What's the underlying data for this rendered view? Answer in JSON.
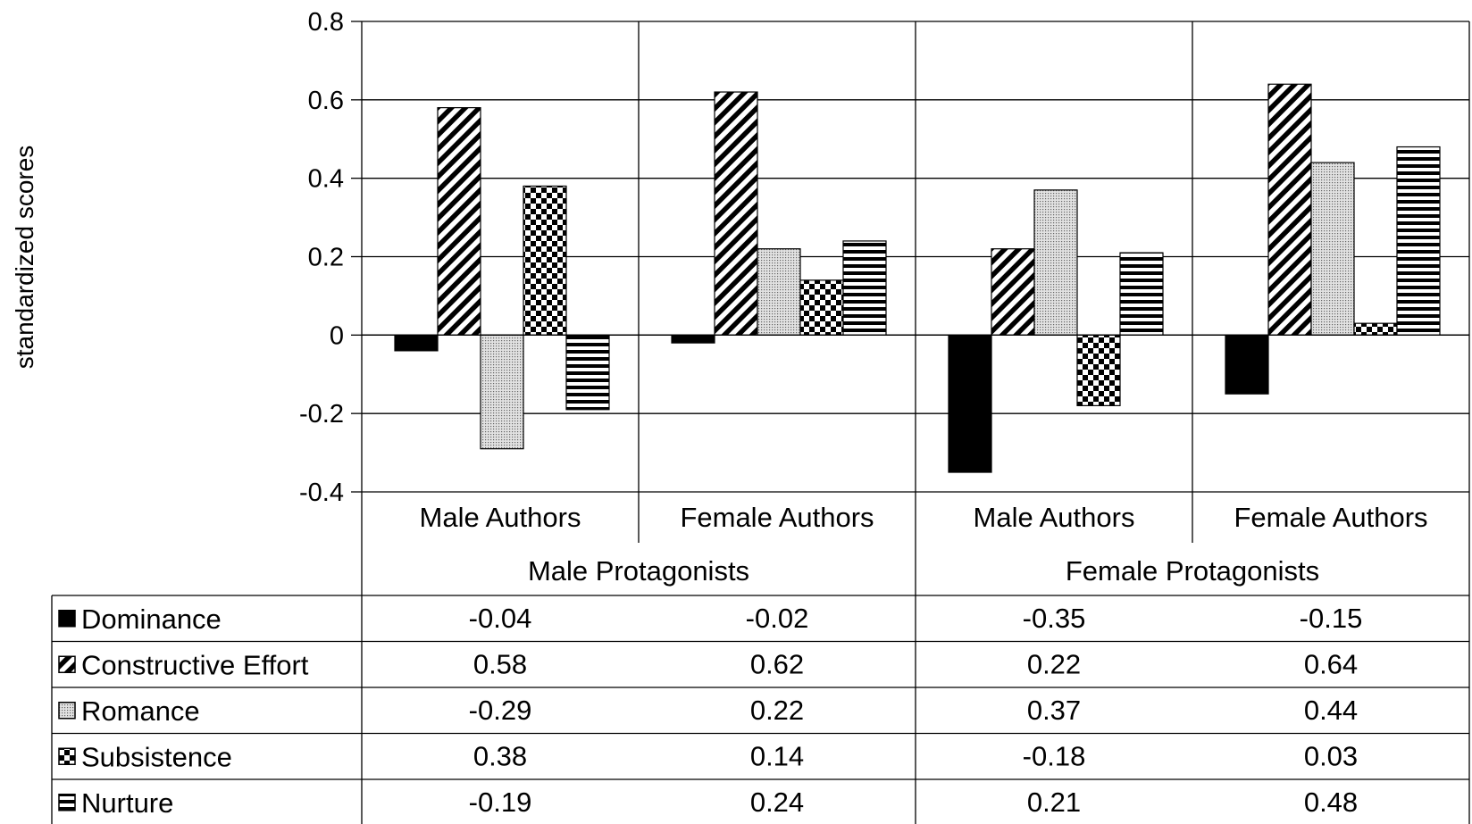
{
  "chart_data": {
    "type": "bar",
    "title": "",
    "ylabel": "standardized scores",
    "xlabel": "",
    "ylim": [
      -0.4,
      0.8
    ],
    "yticks": [
      0.8,
      0.6,
      0.4,
      0.2,
      0,
      -0.2,
      -0.4
    ],
    "ytick_labels": [
      "0.8",
      "0.6",
      "0.4",
      "0.2",
      "0",
      "-0.2",
      "-0.4"
    ],
    "categories": [
      "Male Authors",
      "Female Authors",
      "Male Authors",
      "Female Authors"
    ],
    "groups": [
      {
        "label": "Male Protagonists",
        "categories": [
          0,
          1
        ]
      },
      {
        "label": "Female Protagonists",
        "categories": [
          2,
          3
        ]
      }
    ],
    "series": [
      {
        "name": "Dominance",
        "pattern": "solid-black",
        "values": [
          -0.04,
          -0.02,
          -0.35,
          -0.15
        ],
        "labels": [
          "-0.04",
          "-0.02",
          "-0.35",
          "-0.15"
        ]
      },
      {
        "name": "Constructive Effort",
        "pattern": "diagonal-hatch",
        "values": [
          0.58,
          0.62,
          0.22,
          0.64
        ],
        "labels": [
          "0.58",
          "0.62",
          "0.22",
          "0.64"
        ]
      },
      {
        "name": "Romance",
        "pattern": "dotted",
        "values": [
          -0.29,
          0.22,
          0.37,
          0.44
        ],
        "labels": [
          "-0.29",
          "0.22",
          "0.37",
          "0.44"
        ]
      },
      {
        "name": "Subsistence",
        "pattern": "checkerboard",
        "values": [
          0.38,
          0.14,
          -0.18,
          0.03
        ],
        "labels": [
          "0.38",
          "0.14",
          "-0.18",
          "0.03"
        ]
      },
      {
        "name": "Nurture",
        "pattern": "horizontal-stripes",
        "values": [
          -0.19,
          0.24,
          0.21,
          0.48
        ],
        "labels": [
          "-0.19",
          "0.24",
          "0.21",
          "0.48"
        ]
      }
    ],
    "grid": true,
    "legend": "data-table-below"
  }
}
